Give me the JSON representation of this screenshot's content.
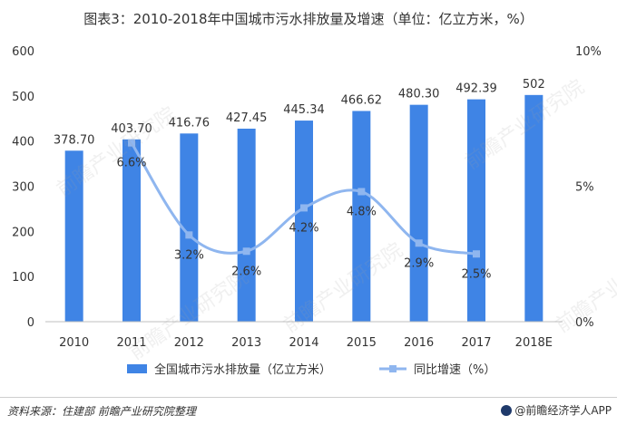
{
  "title": "图表3：2010-2018年中国城市污水排放量及增速（单位：亿立方米，%）",
  "source": "资料来源：住建部 前瞻产业研究院整理",
  "brand": "@前瞻经济学人APP",
  "watermark": "前瞻产业研究院",
  "chart_data": {
    "type": "bar",
    "categories": [
      "2010",
      "2011",
      "2012",
      "2013",
      "2014",
      "2015",
      "2016",
      "2017",
      "2018E"
    ],
    "series": [
      {
        "name": "全国城市污水排放量（亿立方米）",
        "type": "bar",
        "axis": "left",
        "color": "#3f84e5",
        "values": [
          378.7,
          403.7,
          416.76,
          427.45,
          445.34,
          466.62,
          480.3,
          492.39,
          502
        ],
        "labels": [
          "378.70",
          "403.70",
          "416.76",
          "427.45",
          "445.34",
          "466.62",
          "480.30",
          "492.39",
          "502"
        ]
      },
      {
        "name": "同比增速（%）",
        "type": "line",
        "axis": "right",
        "color": "#8fb6ef",
        "values": [
          null,
          6.6,
          3.2,
          2.6,
          4.2,
          4.8,
          2.9,
          2.5,
          null
        ],
        "labels": [
          "",
          "6.6%",
          "3.2%",
          "2.6%",
          "4.2%",
          "4.8%",
          "2.9%",
          "2.5%",
          ""
        ]
      }
    ],
    "y_left": {
      "min": 0,
      "max": 600,
      "ticks": [
        "0",
        "100",
        "200",
        "300",
        "400",
        "500",
        "600"
      ]
    },
    "y_right": {
      "min": 0,
      "max": 10,
      "ticks": [
        "0%",
        "5%",
        "10%"
      ]
    },
    "legend": [
      "全国城市污水排放量（亿立方米）",
      "同比增速（%）"
    ],
    "legend_position": "bottom",
    "grid": false
  }
}
